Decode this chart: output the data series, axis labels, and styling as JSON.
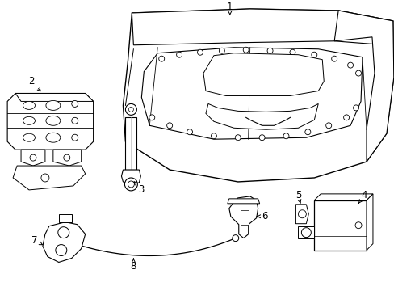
{
  "background_color": "#ffffff",
  "line_color": "#000000",
  "figure_width": 4.89,
  "figure_height": 3.6,
  "dpi": 100
}
